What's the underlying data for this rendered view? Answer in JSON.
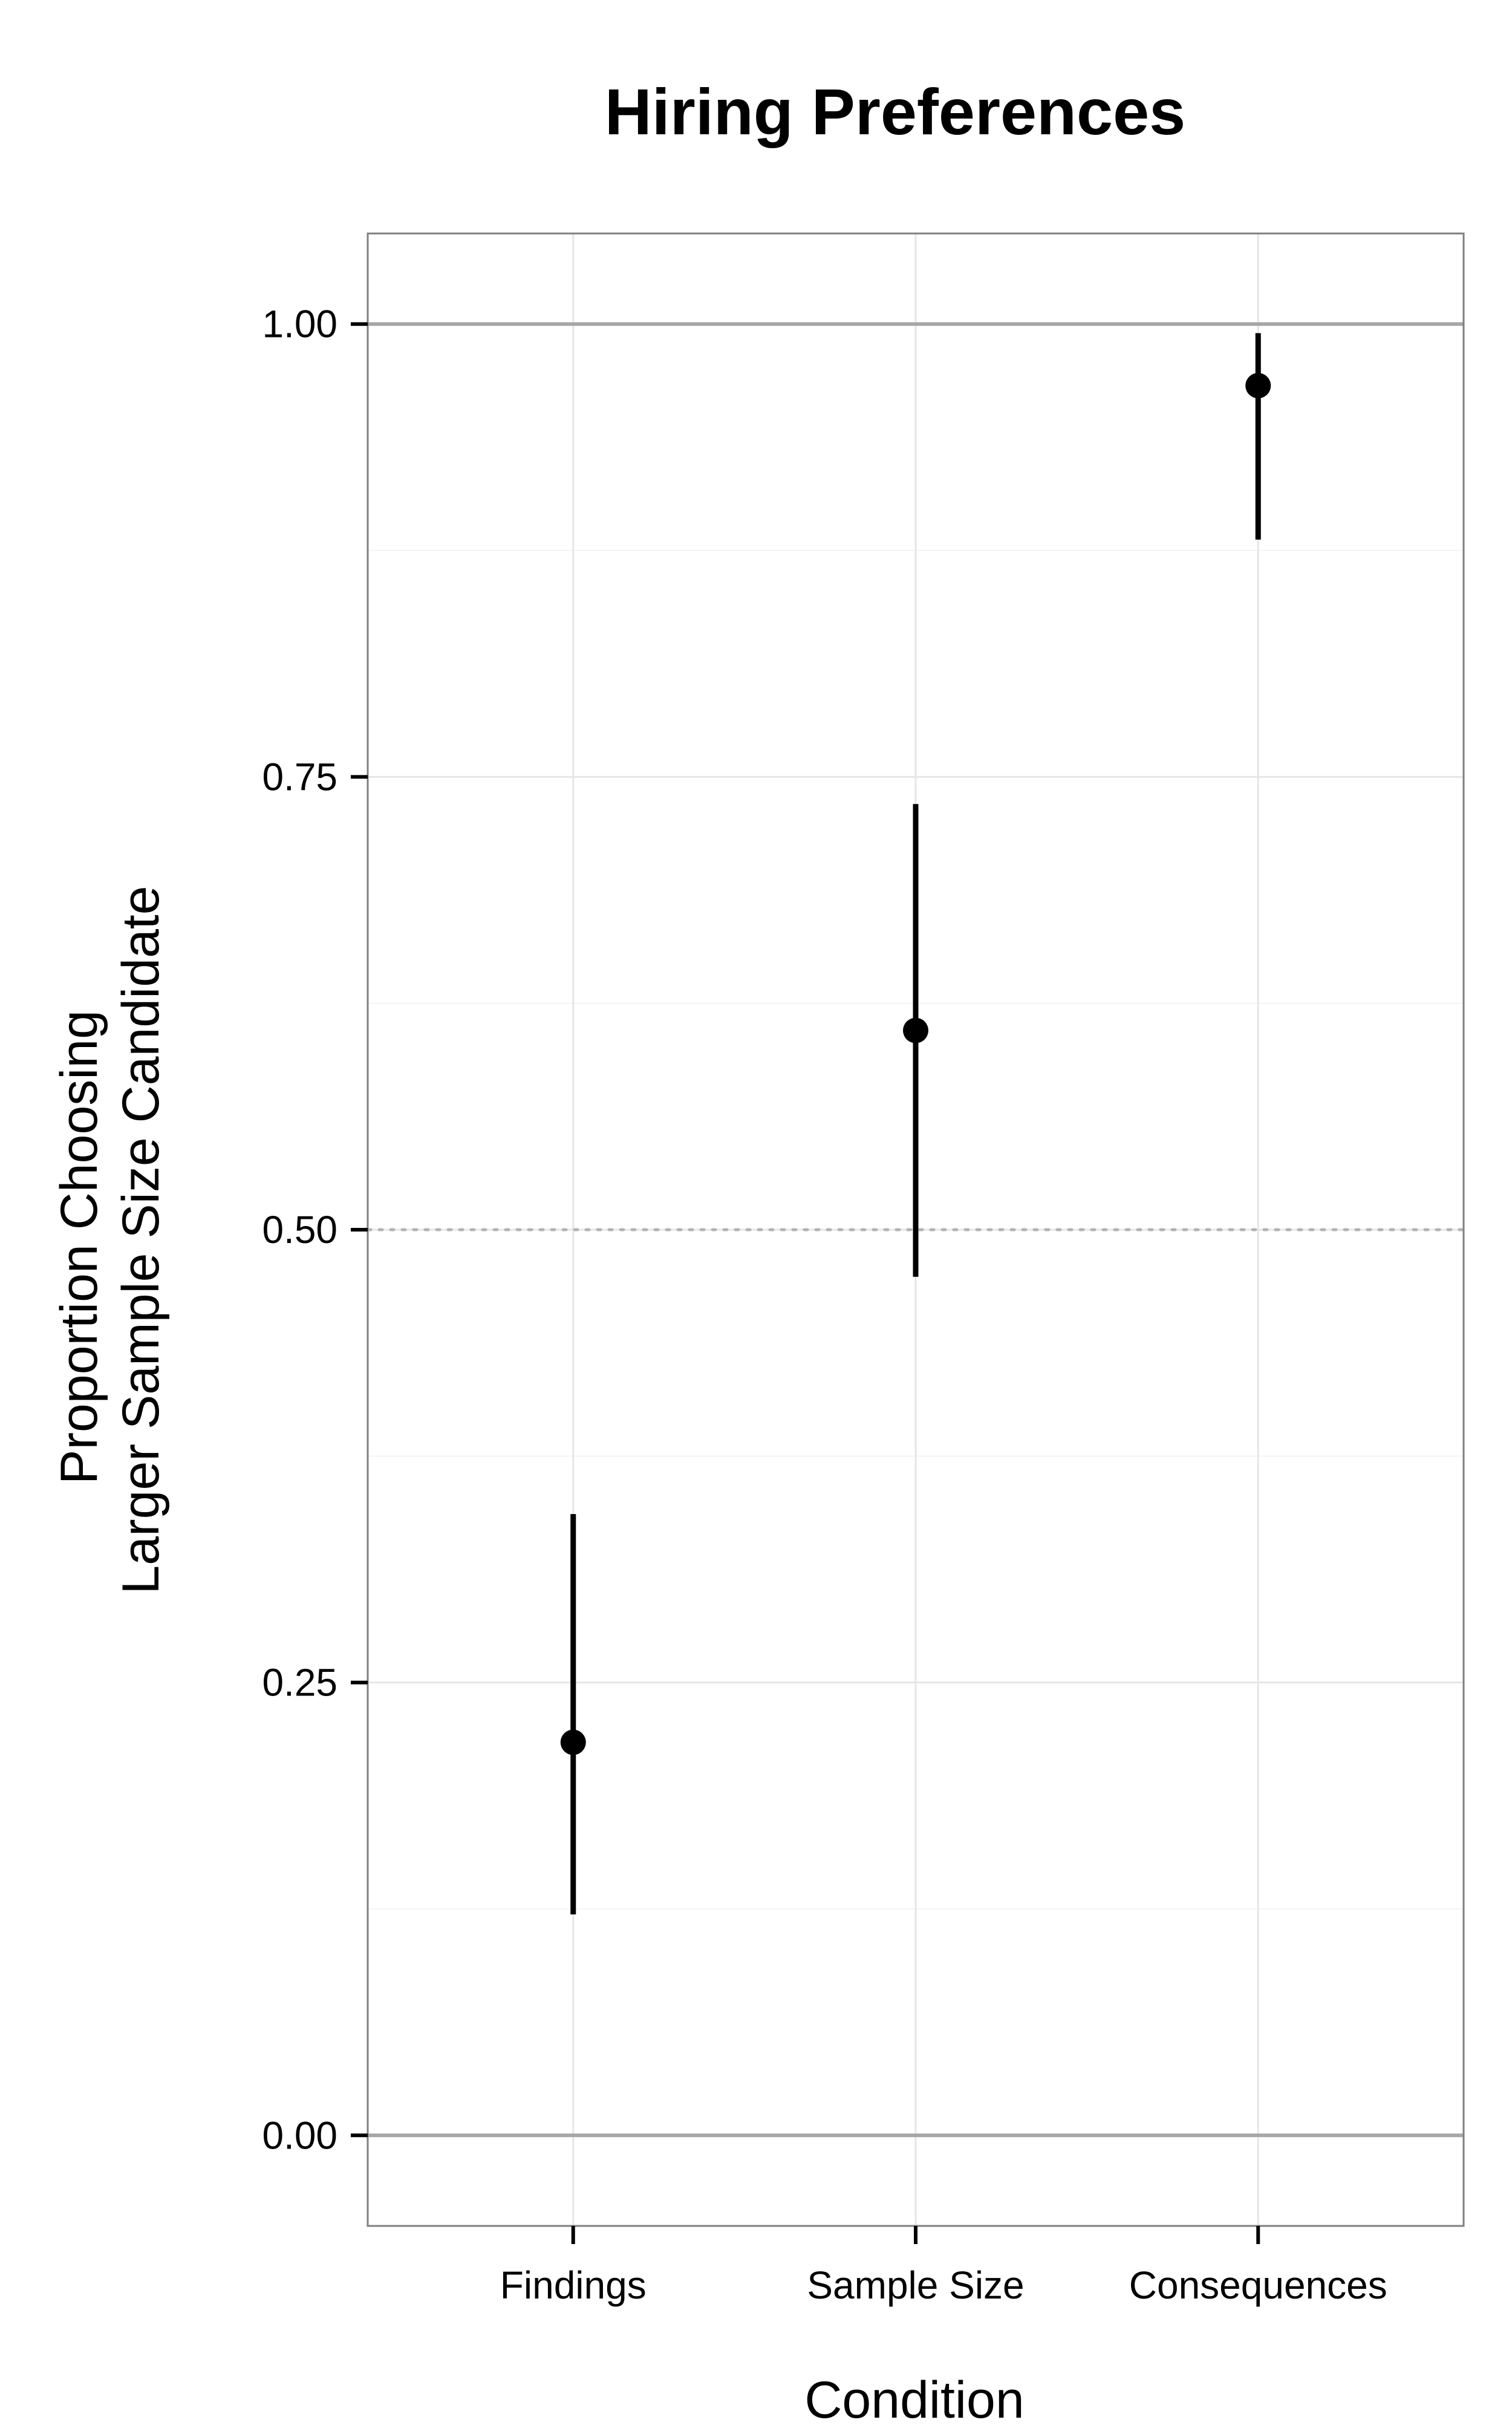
{
  "chart_data": {
    "type": "scatter",
    "title": "Hiring Preferences",
    "xlabel": "Condition",
    "ylabel_lines": [
      "Proportion Choosing",
      "Larger Sample Size Candidate"
    ],
    "categories": [
      "Findings",
      "Sample Size",
      "Consequences"
    ],
    "series": [
      {
        "values": [
          0.217,
          0.61,
          0.966
        ],
        "ci_low": [
          0.122,
          0.474,
          0.881
        ],
        "ci_high": [
          0.343,
          0.735,
          0.995
        ]
      }
    ],
    "ylim": [
      -0.05,
      1.05
    ],
    "y_ticks": [
      "0.00",
      "0.25",
      "0.50",
      "0.75",
      "1.00"
    ],
    "y_tick_values": [
      0,
      0.25,
      0.5,
      0.75,
      1
    ],
    "reference_lines": [
      {
        "value": 0,
        "style": "solid"
      },
      {
        "value": 1,
        "style": "solid"
      },
      {
        "value": 0.5,
        "style": "dotted"
      }
    ],
    "grid": true,
    "legend": "none",
    "colors": {
      "point": "#000000",
      "grid_major": "#e6e6e6",
      "grid_minor": "#f4f4f4",
      "reference_solid": "#a6a6a6",
      "reference_dotted": "#b3b3b3",
      "panel_border": "#7f7f7f"
    }
  }
}
